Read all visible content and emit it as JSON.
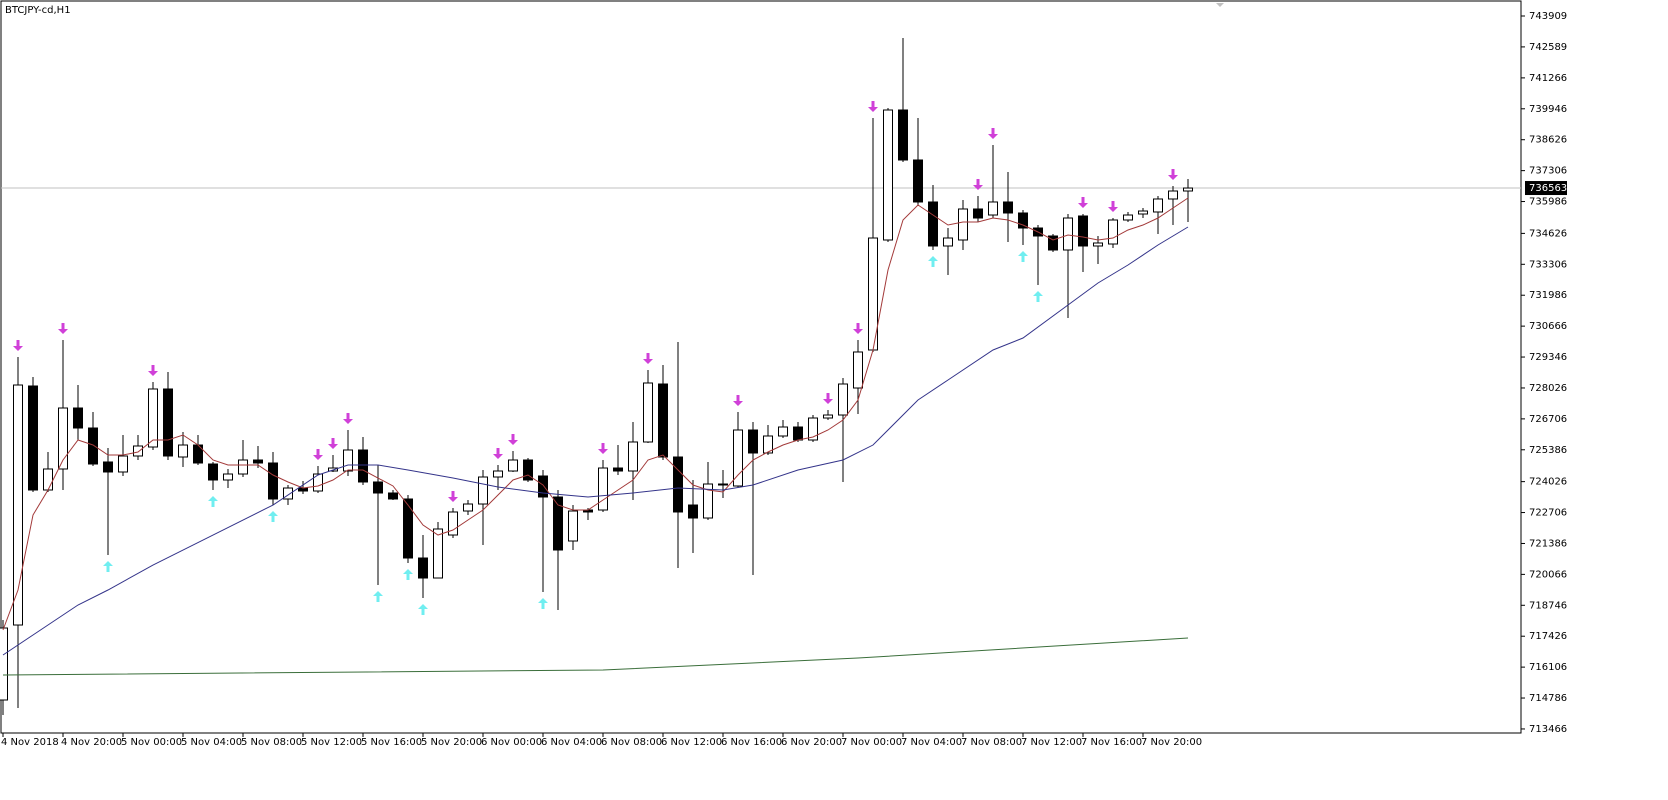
{
  "chart_data": {
    "type": "candlestick",
    "title": "BTCJPY-cd,H1",
    "categories": [
      "4 Nov 2018",
      null,
      null,
      null,
      "4 Nov 20:00",
      null,
      null,
      null,
      "5 Nov 00:00",
      null,
      null,
      null,
      "5 Nov 04:00",
      null,
      null,
      null,
      "5 Nov 08:00",
      null,
      null,
      null,
      "5 Nov 12:00",
      null,
      null,
      null,
      "5 Nov 16:00",
      null,
      null,
      null,
      "5 Nov 20:00",
      null,
      null,
      null,
      "6 Nov 00:00",
      null,
      null,
      null,
      "6 Nov 04:00",
      null,
      null,
      null,
      "6 Nov 08:00",
      null,
      null,
      null,
      "6 Nov 12:00",
      null,
      null,
      null,
      "6 Nov 16:00",
      null,
      null,
      null,
      "6 Nov 20:00",
      null,
      null,
      null,
      "7 Nov 00:00",
      null,
      null,
      null,
      "7 Nov 04:00",
      null,
      null,
      null,
      "7 Nov 08:00",
      null,
      null,
      null,
      "7 Nov 12:00",
      null,
      null,
      null,
      "7 Nov 16:00",
      null,
      null,
      null,
      "7 Nov 20:00",
      null,
      null,
      null
    ],
    "open": [
      714702,
      717904,
      728110,
      723669,
      724566,
      727170,
      726316,
      724865,
      724438,
      725121,
      725505,
      727982,
      725078,
      725590,
      724779,
      724096,
      724352,
      724950,
      724822,
      723285,
      723754,
      723626,
      724480,
      724480,
      725377,
      724011,
      723541,
      723285,
      720765,
      719911,
      721747,
      722772,
      723071,
      724224,
      724480,
      724950,
      724267,
      723370,
      721491,
      722815,
      722815,
      724608,
      724480,
      725719,
      728195,
      725078,
      723028,
      722473,
      723925,
      723840,
      726231,
      725249,
      725975,
      726359,
      725804,
      726743,
      726871,
      728024,
      729647,
      734344,
      739895,
      737760,
      735967,
      734088,
      734344,
      735668,
      735411,
      735967,
      735497,
      734856,
      734515,
      733917,
      735369,
      734088,
      734173,
      735198,
      735454,
      735540,
      736095,
      736436
    ],
    "high": [
      718118,
      729348,
      728494,
      725292,
      730074,
      728152,
      727000,
      725462,
      726017,
      726017,
      728281,
      728708,
      726146,
      726017,
      724865,
      724566,
      725804,
      725548,
      725292,
      723882,
      724053,
      724694,
      725163,
      726231,
      725932,
      724736,
      723669,
      723455,
      721747,
      722303,
      722900,
      723242,
      724523,
      724736,
      725334,
      725035,
      724523,
      723669,
      723028,
      722900,
      724950,
      725590,
      726573,
      728793,
      729006,
      729989,
      724096,
      724865,
      724523,
      727000,
      726573,
      726444,
      726658,
      726573,
      726871,
      727085,
      728451,
      730074,
      739553,
      739980,
      742969,
      739553,
      736692,
      734856,
      736052,
      736223,
      738400,
      737248,
      735625,
      734984,
      734600,
      735454,
      735454,
      734515,
      735283,
      735540,
      735710,
      736223,
      736650,
      736949
    ],
    "low": [
      714061,
      714360,
      723584,
      723584,
      723669,
      725804,
      724694,
      720893,
      724267,
      724950,
      725377,
      724950,
      724651,
      724736,
      723669,
      723754,
      724224,
      724608,
      723028,
      723028,
      723498,
      723541,
      724438,
      724267,
      723882,
      719612,
      723242,
      720552,
      719057,
      719911,
      721619,
      722601,
      721320,
      723669,
      724438,
      724011,
      719314,
      718545,
      721107,
      722388,
      722730,
      724309,
      723242,
      725676,
      724950,
      720338,
      720979,
      722388,
      723327,
      723797,
      720039,
      725163,
      725889,
      725719,
      725719,
      726658,
      724011,
      726914,
      729562,
      734259,
      737675,
      735838,
      733917,
      732849,
      733917,
      735113,
      735283,
      734259,
      734130,
      732422,
      733832,
      731013,
      732978,
      733319,
      734002,
      735113,
      735283,
      734600,
      734984,
      735113
    ],
    "close": [
      717776,
      728152,
      723669,
      724566,
      727170,
      726316,
      724779,
      724438,
      725121,
      725548,
      727982,
      725121,
      725590,
      724822,
      724096,
      724352,
      724950,
      724822,
      723285,
      723754,
      723626,
      724352,
      724608,
      725377,
      724011,
      723541,
      723285,
      720765,
      719911,
      722004,
      722730,
      723071,
      724224,
      724480,
      724950,
      724096,
      723370,
      721107,
      722772,
      722730,
      724608,
      724480,
      725719,
      728238,
      725078,
      722730,
      722473,
      723925,
      723882,
      726231,
      725249,
      725975,
      726359,
      725804,
      726743,
      726871,
      728195,
      729562,
      734429,
      739895,
      737760,
      735967,
      734088,
      734429,
      735668,
      735283,
      735967,
      735497,
      734856,
      734515,
      733917,
      735283,
      734088,
      734216,
      735198,
      735411,
      735582,
      736095,
      736436,
      736563
    ],
    "overlays": [
      {
        "color": "#a33a3a",
        "values": [
          717691,
          719399,
          722601,
          723669,
          724950,
          725804,
          725590,
          725163,
          725163,
          725292,
          725804,
          725804,
          726017,
          725590,
          724950,
          724736,
          724736,
          724736,
          724309,
          724011,
          723754,
          723840,
          724096,
          724523,
          724523,
          724181,
          723840,
          723028,
          722174,
          721747,
          721961,
          722388,
          722815,
          723455,
          724096,
          724309,
          723882,
          723028,
          722815,
          722815,
          723242,
          723669,
          724096,
          724950,
          725163,
          724523,
          723882,
          723669,
          723584,
          724309,
          724950,
          725292,
          725590,
          725804,
          725932,
          726231,
          726658,
          727512,
          729647,
          733063,
          735198,
          735838,
          735411,
          734984,
          735113,
          735113,
          735283,
          735198,
          734984,
          734686,
          734344,
          734557,
          734472,
          734344,
          734429,
          734771,
          734984,
          735283,
          735710,
          736137
        ]
      },
      {
        "color": "#34348a",
        "x": [
          0,
          2,
          5,
          7,
          10,
          14,
          18,
          21,
          23,
          25,
          27,
          30,
          33,
          36,
          39,
          42,
          45,
          48,
          50,
          53,
          56,
          58,
          61,
          63,
          66,
          68,
          71,
          73,
          75,
          77,
          79
        ],
        "values": [
          716623,
          717477,
          718758,
          719399,
          720466,
          721747,
          723028,
          724309,
          724736,
          724736,
          724523,
          724181,
          723797,
          723541,
          723370,
          723541,
          723754,
          723669,
          723882,
          724523,
          724950,
          725590,
          727512,
          728366,
          729647,
          730159,
          731568,
          732508,
          733276,
          734130,
          734899
        ]
      },
      {
        "color": "#3a6e3a",
        "x": [
          0,
          40,
          57,
          79
        ],
        "values": [
          715769,
          715983,
          716495,
          717349
        ]
      }
    ],
    "down_arrows": [
      1,
      4,
      10,
      21,
      22,
      23,
      30,
      33,
      34,
      40,
      43,
      49,
      55,
      57,
      58,
      65,
      66,
      72,
      74,
      78
    ],
    "up_arrows": [
      7,
      14,
      18,
      25,
      27,
      28,
      36,
      62,
      68,
      69
    ],
    "down_color": "#d040d8",
    "up_color": "#70eef0",
    "current_price": 736563,
    "ylim": [
      713293,
      744549
    ],
    "yticks": [
      743909,
      742589,
      741266,
      739946,
      738626,
      737306,
      735986,
      734626,
      733306,
      731986,
      730666,
      729346,
      728026,
      726706,
      725386,
      724026,
      722706,
      721386,
      720066,
      718746,
      717426,
      716106,
      714786,
      713466
    ]
  }
}
